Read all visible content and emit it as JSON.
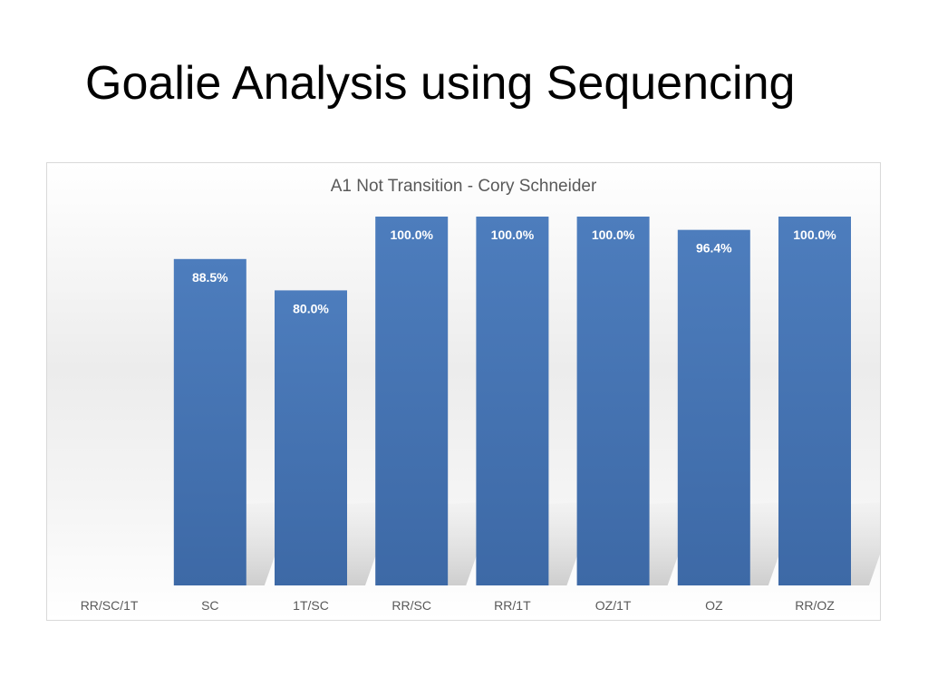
{
  "slide": {
    "title": "Goalie Analysis using Sequencing"
  },
  "colors": {
    "bar": "#4a78b5",
    "bar_dark": "#3e68a3",
    "label_text": "#ffffff",
    "axis_text": "#595959"
  },
  "chart_data": {
    "type": "bar",
    "title": "A1 Not Transition - Cory Schneider",
    "xlabel": "",
    "ylabel": "",
    "ylim": [
      0,
      100
    ],
    "grid": false,
    "legend": "none",
    "categories": [
      "RR/SC/1T",
      "SC",
      "1T/SC",
      "RR/SC",
      "RR/1T",
      "OZ/1T",
      "OZ",
      "RR/OZ"
    ],
    "values": [
      null,
      88.5,
      80.0,
      100.0,
      100.0,
      100.0,
      96.4,
      100.0
    ],
    "data_labels": [
      "",
      "88.5%",
      "80.0%",
      "100.0%",
      "100.0%",
      "100.0%",
      "96.4%",
      "100.0%"
    ]
  }
}
